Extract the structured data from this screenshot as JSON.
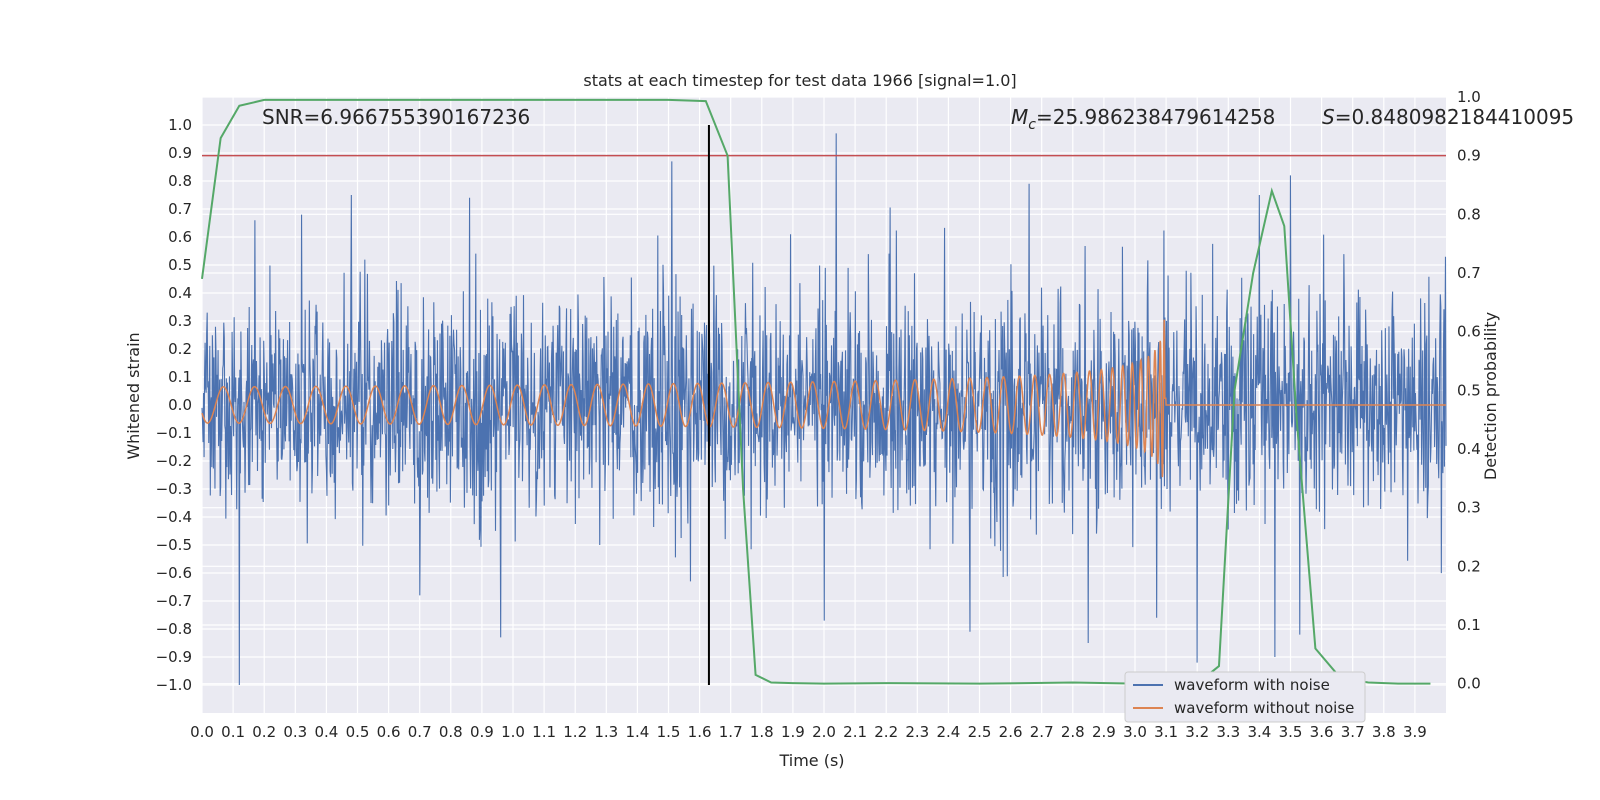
{
  "chart_data": {
    "type": "line",
    "title": "stats at each timestep for test data 1966 [signal=1.0]",
    "xlabel": "Time (s)",
    "ylabel": "Whitened strain",
    "y2label": "Detection probability",
    "xlim": [
      0.0,
      4.0
    ],
    "ylim": [
      -1.1,
      1.1
    ],
    "y2lim": [
      -0.05,
      1.0
    ],
    "xticks": [
      0.0,
      0.1,
      0.2,
      0.3,
      0.4,
      0.5,
      0.6,
      0.7,
      0.8,
      0.9,
      1.0,
      1.1,
      1.2,
      1.3,
      1.4,
      1.5,
      1.6,
      1.7,
      1.8,
      1.9,
      2.0,
      2.1,
      2.2,
      2.3,
      2.4,
      2.5,
      2.6,
      2.7,
      2.8,
      2.9,
      3.0,
      3.1,
      3.2,
      3.3,
      3.4,
      3.5,
      3.6,
      3.7,
      3.8,
      3.9
    ],
    "xtick_labels": [
      "0.0",
      "0.1",
      "0.2",
      "0.3",
      "0.4",
      "0.5",
      "0.6",
      "0.7",
      "0.8",
      "0.9",
      "1.0",
      "1.1",
      "1.2",
      "1.3",
      "1.4",
      "1.5",
      "1.6",
      "1.7",
      "1.8",
      "1.9",
      "2.0",
      "2.1",
      "2.2",
      "2.3",
      "2.4",
      "2.5",
      "2.6",
      "2.7",
      "2.8",
      "2.9",
      "3.0",
      "3.1",
      "3.2",
      "3.3",
      "3.4",
      "3.5",
      "3.6",
      "3.7",
      "3.8",
      "3.9"
    ],
    "yticks": [
      1.0,
      0.9,
      0.8,
      0.7,
      0.6,
      0.5,
      0.4,
      0.3,
      0.2,
      0.1,
      0.0,
      -0.1,
      -0.2,
      -0.3,
      -0.4,
      -0.5,
      -0.6,
      -0.7,
      -0.8,
      -0.9,
      -1.0
    ],
    "ytick_labels": [
      "1.0",
      "0.9",
      "0.8",
      "0.7",
      "0.6",
      "0.5",
      "0.4",
      "0.3",
      "0.2",
      "0.1",
      "0.0",
      "−0.1",
      "−0.2",
      "−0.3",
      "−0.4",
      "−0.5",
      "−0.6",
      "−0.7",
      "−0.8",
      "−0.9",
      "−1.0"
    ],
    "y2ticks": [
      1.0,
      0.9,
      0.8,
      0.7,
      0.6,
      0.5,
      0.4,
      0.3,
      0.2,
      0.1,
      0.0
    ],
    "y2tick_labels": [
      "1.0",
      "0.9",
      "0.8",
      "0.7",
      "0.6",
      "0.5",
      "0.4",
      "0.3",
      "0.2",
      "0.1",
      "0.0"
    ],
    "annotations": {
      "snr": "SNR=6.966755390167236",
      "mc_symbol": "M",
      "mc_sub": "c",
      "mc_value": "=25.986238479614258",
      "s_symbol": "S",
      "s_value": "=0.8480982184410095"
    },
    "legend": {
      "placement": "lower-right",
      "entries": [
        "waveform with noise",
        "waveform without noise"
      ]
    },
    "threshold_line": {
      "axis": "y2",
      "value": 0.9,
      "color": "#c44e52"
    },
    "vertical_line": {
      "x": 1.63,
      "y_from": -1.0,
      "y_to": 1.0,
      "color": "#000000"
    },
    "series": [
      {
        "name": "waveform with noise",
        "color": "#4c72b0",
        "description": "dense noisy whitened strain, amplitude roughly within ±0.6 with spikes",
        "spikes": [
          {
            "x": 0.12,
            "y": -1.0
          },
          {
            "x": 0.17,
            "y": 0.66
          },
          {
            "x": 0.32,
            "y": 0.68
          },
          {
            "x": 0.48,
            "y": 0.75
          },
          {
            "x": 0.7,
            "y": -0.68
          },
          {
            "x": 0.86,
            "y": 0.74
          },
          {
            "x": 0.96,
            "y": -0.83
          },
          {
            "x": 1.51,
            "y": 0.87
          },
          {
            "x": 1.57,
            "y": -0.63
          },
          {
            "x": 2.04,
            "y": 0.97
          },
          {
            "x": 2.0,
            "y": -0.77
          },
          {
            "x": 2.47,
            "y": -0.81
          },
          {
            "x": 2.66,
            "y": 0.79
          },
          {
            "x": 2.85,
            "y": -0.85
          },
          {
            "x": 3.07,
            "y": -0.76
          },
          {
            "x": 3.2,
            "y": -0.92
          },
          {
            "x": 3.45,
            "y": -0.9
          },
          {
            "x": 3.5,
            "y": 0.82
          },
          {
            "x": 3.53,
            "y": -0.82
          },
          {
            "x": 3.4,
            "y": 0.75
          }
        ]
      },
      {
        "name": "waveform without noise",
        "color": "#dd8452",
        "description": "chirp signal growing in amplitude and frequency, merger near 3.1 s, flat after",
        "merger_time": 3.1,
        "peak_amplitude": 0.34
      },
      {
        "name": "detection probability",
        "color": "#55a868",
        "axis": "y2",
        "x": [
          0.0,
          0.06,
          0.12,
          0.2,
          0.3,
          0.5,
          0.8,
          1.0,
          1.3,
          1.5,
          1.62,
          1.69,
          1.74,
          1.78,
          1.83,
          1.9,
          2.0,
          2.2,
          2.5,
          2.8,
          3.0,
          3.2,
          3.27,
          3.32,
          3.38,
          3.44,
          3.48,
          3.52,
          3.58,
          3.66,
          3.75,
          3.85,
          3.95
        ],
        "values": [
          0.69,
          0.93,
          0.985,
          0.995,
          0.995,
          0.995,
          0.995,
          0.995,
          0.995,
          0.995,
          0.993,
          0.9,
          0.33,
          0.015,
          0.002,
          0.001,
          0.0,
          0.001,
          0.0,
          0.002,
          0.0,
          0.0,
          0.03,
          0.5,
          0.7,
          0.84,
          0.78,
          0.45,
          0.06,
          0.01,
          0.002,
          0.0,
          0.0
        ]
      }
    ]
  }
}
